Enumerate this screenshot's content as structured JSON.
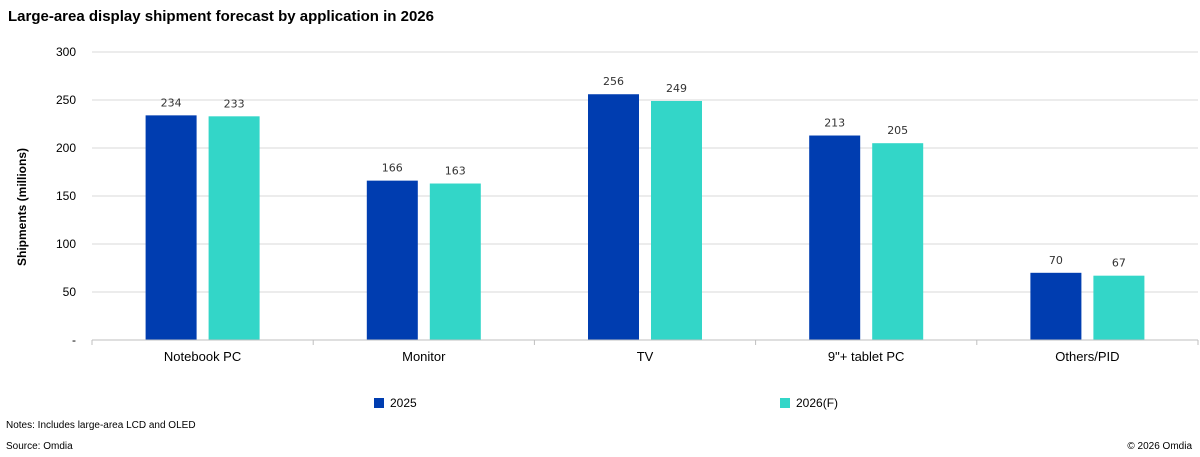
{
  "chart_data": {
    "type": "bar",
    "title": "Large-area display shipment forecast by application in 2026",
    "ylabel": "Shipments (millions)",
    "xlabel": "",
    "categories": [
      "Notebook PC",
      "Monitor",
      "TV",
      "9\"+ tablet PC",
      "Others/PID"
    ],
    "series": [
      {
        "name": "2025",
        "values": [
          234,
          166,
          256,
          213,
          70
        ],
        "color": "#003DB0"
      },
      {
        "name": "2026(F)",
        "values": [
          233,
          163,
          249,
          205,
          67
        ],
        "color": "#33D6C8"
      }
    ],
    "ylim": [
      0,
      300
    ],
    "yticks": [
      "-",
      "50",
      "100",
      "150",
      "200",
      "250",
      "300"
    ],
    "grid": true,
    "legend": "bottom"
  },
  "notes": "Notes: Includes large-area  LCD and OLED",
  "source": "Source: Omdia",
  "copyright": "© 2026 Omdia"
}
